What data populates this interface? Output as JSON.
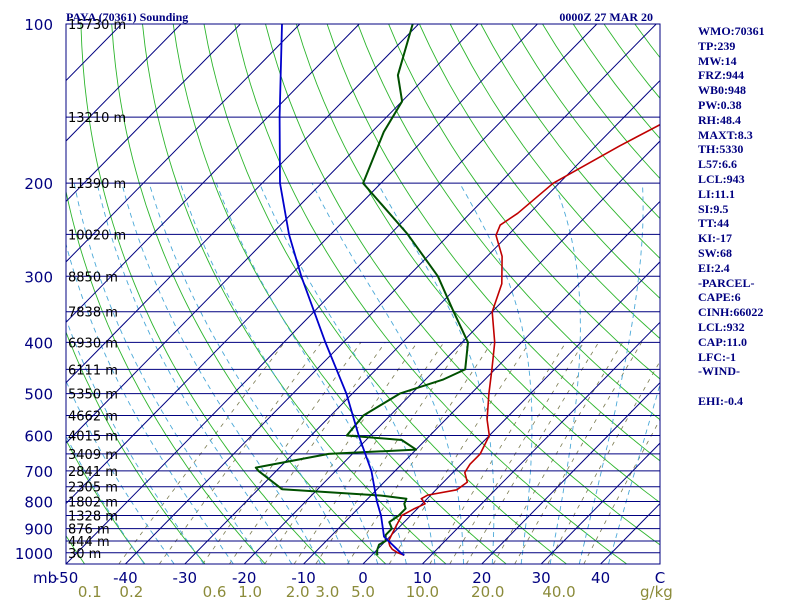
{
  "header": {
    "title": "PAYA (70361) Sounding",
    "valid_time": "0000Z 27 MAR 20"
  },
  "indices": [
    "WMO:70361",
    "TP:239",
    "MW:14",
    "FRZ:944",
    "WB0:948",
    "PW:0.38",
    "RH:48.4",
    "MAXT:8.3",
    "TH:5330",
    "L57:6.6",
    "LCL:943",
    "LI:11.1",
    "SI:9.5",
    "TT:44",
    "KI:-17",
    "SW:68",
    "EI:2.4",
    "-PARCEL-",
    "CAPE:6",
    "CINH:66022",
    "LCL:932",
    "CAP:11.0",
    "LFC:-1",
    "-WIND-",
    "",
    "EHI:-0.4"
  ],
  "colors": {
    "isobar": "#000080",
    "isotherm": "#000080",
    "dry_adiabat": "#2db52d",
    "moist_adiabat": "#4aa8d8",
    "mixing_ratio": "#7a7a50",
    "temperature": "#c00000",
    "dewpoint": "#005000",
    "parcel": "#0000cc",
    "text": "#000080",
    "mixing_label": "#8b8b3a"
  },
  "chart_data": {
    "type": "line",
    "title": "PAYA (70361) Sounding",
    "subtitle": "0000Z 27 MAR 20",
    "xlabel": "",
    "ylabel": "mb",
    "x_unit": "°C",
    "y_scale": "log",
    "xlim": [
      -50,
      50
    ],
    "ylim": [
      1050,
      100
    ],
    "x_ticks": [
      -50,
      -40,
      -30,
      -20,
      -10,
      0,
      10,
      20,
      30,
      40,
      50
    ],
    "x_tick_labels": [
      "-50",
      "-40",
      "-30",
      "-20",
      "-10",
      "0",
      "10",
      "20",
      "30",
      "40",
      "C"
    ],
    "y_ticks": [
      100,
      200,
      300,
      400,
      500,
      600,
      700,
      800,
      900,
      1000
    ],
    "y_tick_labels": [
      "100",
      "200",
      "300",
      "400",
      "500",
      "600",
      "700",
      "800",
      "900",
      "1000"
    ],
    "y_axis_unit_label": "mb",
    "heights": [
      {
        "p": 100,
        "label": "15730 m"
      },
      {
        "p": 150,
        "label": "13210 m"
      },
      {
        "p": 200,
        "label": "11390 m"
      },
      {
        "p": 250,
        "label": "10020 m"
      },
      {
        "p": 300,
        "label": "8850 m"
      },
      {
        "p": 350,
        "label": "7838 m"
      },
      {
        "p": 400,
        "label": "6930 m"
      },
      {
        "p": 450,
        "label": "6111 m"
      },
      {
        "p": 500,
        "label": "5350 m"
      },
      {
        "p": 550,
        "label": "4662 m"
      },
      {
        "p": 600,
        "label": "4015 m"
      },
      {
        "p": 650,
        "label": "3409 m"
      },
      {
        "p": 700,
        "label": "2841 m"
      },
      {
        "p": 750,
        "label": "2305 m"
      },
      {
        "p": 800,
        "label": "1802 m"
      },
      {
        "p": 850,
        "label": "1328 m"
      },
      {
        "p": 900,
        "label": "876 m"
      },
      {
        "p": 950,
        "label": "444 m"
      },
      {
        "p": 1000,
        "label": "30 m"
      }
    ],
    "mixing_ratio_unit": "g/kg",
    "mixing_ratio_labels": [
      "0.1",
      "0.2",
      "0.6",
      "1.0",
      "2.0",
      "3.0",
      "5.0",
      "10.0",
      "20.0",
      "40.0"
    ],
    "mixing_ratio_label_temps": [
      -46,
      -39,
      -25,
      -19,
      -11,
      -6,
      0,
      10,
      21,
      33
    ],
    "series": [
      {
        "name": "",
        "kind": "temperature",
        "points": [
          {
            "p": 1011,
            "t": 5.5
          },
          {
            "p": 1000,
            "t": 4.0
          },
          {
            "p": 985,
            "t": 2.5
          },
          {
            "p": 970,
            "t": 1.5
          },
          {
            "p": 950,
            "t": 0.5
          },
          {
            "p": 925,
            "t": 0.0
          },
          {
            "p": 900,
            "t": -0.5
          },
          {
            "p": 875,
            "t": -1.0
          },
          {
            "p": 850,
            "t": -1.5
          },
          {
            "p": 825,
            "t": -0.5
          },
          {
            "p": 808,
            "t": 0.5
          },
          {
            "p": 790,
            "t": -1.0
          },
          {
            "p": 778,
            "t": -0.5
          },
          {
            "p": 760,
            "t": 3.5
          },
          {
            "p": 735,
            "t": 4.0
          },
          {
            "p": 705,
            "t": 2.0
          },
          {
            "p": 680,
            "t": 1.5
          },
          {
            "p": 650,
            "t": 1.5
          },
          {
            "p": 600,
            "t": 0.0
          },
          {
            "p": 560,
            "t": -3.0
          },
          {
            "p": 500,
            "t": -7.0
          },
          {
            "p": 450,
            "t": -10.5
          },
          {
            "p": 400,
            "t": -14.5
          },
          {
            "p": 350,
            "t": -20.0
          },
          {
            "p": 310,
            "t": -23.0
          },
          {
            "p": 275,
            "t": -27.5
          },
          {
            "p": 251,
            "t": -32.0
          },
          {
            "p": 240,
            "t": -33.0
          },
          {
            "p": 228,
            "t": -32.0
          },
          {
            "p": 200,
            "t": -31.0
          },
          {
            "p": 170,
            "t": -26.0
          },
          {
            "p": 152,
            "t": -22.0
          },
          {
            "p": 125,
            "t": -9.0
          },
          {
            "p": 100,
            "t": 4.0
          }
        ]
      },
      {
        "name": "",
        "kind": "dewpoint",
        "points": [
          {
            "p": 1011,
            "t": 1.0
          },
          {
            "p": 1000,
            "t": 0.5
          },
          {
            "p": 985,
            "t": 0.0
          },
          {
            "p": 965,
            "t": -0.5
          },
          {
            "p": 950,
            "t": 0.0
          },
          {
            "p": 925,
            "t": -1.0
          },
          {
            "p": 900,
            "t": -1.0
          },
          {
            "p": 875,
            "t": -2.5
          },
          {
            "p": 850,
            "t": -2.0
          },
          {
            "p": 825,
            "t": -2.0
          },
          {
            "p": 808,
            "t": -3.0
          },
          {
            "p": 790,
            "t": -3.5
          },
          {
            "p": 780,
            "t": -8.0
          },
          {
            "p": 758,
            "t": -26.0
          },
          {
            "p": 700,
            "t": -33.0
          },
          {
            "p": 690,
            "t": -34.0
          },
          {
            "p": 650,
            "t": -24.0
          },
          {
            "p": 638,
            "t": -10.0
          },
          {
            "p": 612,
            "t": -14.0
          },
          {
            "p": 600,
            "t": -24.0
          },
          {
            "p": 550,
            "t": -24.5
          },
          {
            "p": 500,
            "t": -22.0
          },
          {
            "p": 470,
            "t": -17.0
          },
          {
            "p": 450,
            "t": -15.0
          },
          {
            "p": 400,
            "t": -19.0
          },
          {
            "p": 350,
            "t": -26.5
          },
          {
            "p": 300,
            "t": -35.0
          },
          {
            "p": 250,
            "t": -47.0
          },
          {
            "p": 200,
            "t": -63.0
          },
          {
            "p": 160,
            "t": -68.0
          },
          {
            "p": 140,
            "t": -70.0
          },
          {
            "p": 125,
            "t": -75.0
          },
          {
            "p": 100,
            "t": -81.0
          }
        ]
      },
      {
        "name": "",
        "kind": "parcel",
        "points": [
          {
            "p": 1011,
            "t": 5.5
          },
          {
            "p": 1000,
            "t": 4.5
          },
          {
            "p": 950,
            "t": 0.5
          },
          {
            "p": 932,
            "t": -1.0
          },
          {
            "p": 900,
            "t": -2.5
          },
          {
            "p": 850,
            "t": -5.0
          },
          {
            "p": 800,
            "t": -8.0
          },
          {
            "p": 700,
            "t": -14.0
          },
          {
            "p": 600,
            "t": -22.0
          },
          {
            "p": 500,
            "t": -31.0
          },
          {
            "p": 400,
            "t": -43.0
          },
          {
            "p": 300,
            "t": -58.0
          },
          {
            "p": 250,
            "t": -67.0
          },
          {
            "p": 200,
            "t": -77.0
          },
          {
            "p": 150,
            "t": -88.0
          },
          {
            "p": 100,
            "t": -103.0
          }
        ]
      }
    ]
  }
}
